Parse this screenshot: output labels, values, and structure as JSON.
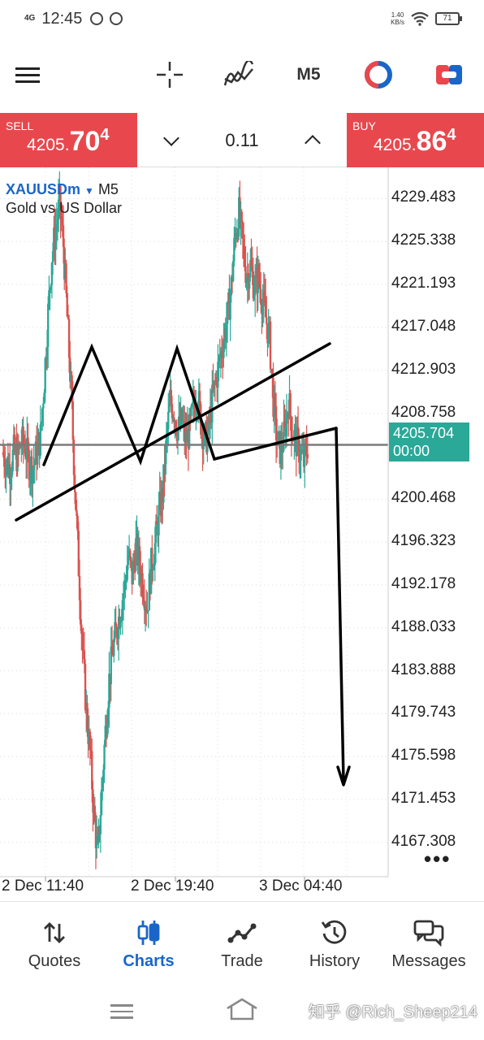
{
  "status": {
    "network": "4G",
    "time": "12:45",
    "speed_value": "1.40",
    "speed_unit": "KB/s",
    "battery": "71"
  },
  "toolbar": {
    "timeframe": "M5",
    "icons": [
      "menu-icon",
      "crosshair-icon",
      "indicators-icon",
      "timeframe-button",
      "chart-color-icon",
      "trade-icon"
    ]
  },
  "trade": {
    "sell_label": "SELL",
    "sell_price_main": "4205.",
    "sell_price_big": "70",
    "sell_price_sup": "4",
    "lot": "0.11",
    "buy_label": "BUY",
    "buy_price_main": "4205.",
    "buy_price_big": "86",
    "buy_price_sup": "4"
  },
  "chart_header": {
    "symbol": "XAUUSDm",
    "timeframe": "M5",
    "description": "Gold vs US Dollar"
  },
  "colors": {
    "sell_bg": "#e8484d",
    "buy_bg": "#e8484d",
    "bull_candle": "#2aa898",
    "bear_candle": "#d9534f",
    "current_price_bg": "#2aa898",
    "accent": "#1a66c8"
  },
  "chart_data": {
    "type": "candlestick",
    "symbol": "XAUUSDm",
    "timeframe": "M5",
    "y_ticks": [
      "4229.483",
      "4225.338",
      "4221.193",
      "4217.048",
      "4212.903",
      "4208.758",
      "4200.468",
      "4196.323",
      "4192.178",
      "4188.033",
      "4183.888",
      "4179.743",
      "4175.598",
      "4171.453",
      "4167.308"
    ],
    "x_ticks": [
      "2 Dec 11:40",
      "2 Dec 19:40",
      "3 Dec 04:40"
    ],
    "ylim": [
      4164.0,
      4232.5
    ],
    "current_price": "4205.704",
    "current_time": "00:00",
    "current_price_value": 4205.704,
    "grid": true,
    "close_path": [
      4205.0,
      4204.0,
      4203.5,
      4205.0,
      4204.5,
      4206.0,
      4205.5,
      4204.0,
      4203.5,
      4205.0,
      4206.5,
      4212.0,
      4218.5,
      4224.0,
      4226.5,
      4229.0,
      4225.0,
      4218.0,
      4211.0,
      4202.0,
      4194.0,
      4186.0,
      4180.0,
      4176.0,
      4170.0,
      4166.0,
      4172.0,
      4178.0,
      4183.0,
      4186.0,
      4188.0,
      4190.0,
      4192.0,
      4195.0,
      4193.0,
      4196.0,
      4194.0,
      4192.0,
      4190.0,
      4194.0,
      4196.0,
      4199.0,
      4201.0,
      4206.0,
      4210.0,
      4209.0,
      4207.0,
      4208.0,
      4206.0,
      4207.0,
      4209.0,
      4211.0,
      4208.0,
      4206.0,
      4207.0,
      4210.0,
      4212.0,
      4214.0,
      4216.0,
      4218.0,
      4221.0,
      4226.0,
      4228.0,
      4225.0,
      4222.0,
      4223.0,
      4221.0,
      4222.0,
      4220.0,
      4218.0,
      4216.0,
      4210.0,
      4206.0,
      4205.0,
      4207.0,
      4210.0,
      4207.0,
      4206.0,
      4205.0,
      4204.0,
      4205.7
    ],
    "annotations": {
      "pattern": "double-top with neckline and projected target",
      "target_price": 4171.453
    }
  },
  "nav": {
    "items": [
      {
        "label": "Quotes"
      },
      {
        "label": "Charts"
      },
      {
        "label": "Trade"
      },
      {
        "label": "History"
      },
      {
        "label": "Messages"
      }
    ],
    "active": "Charts"
  },
  "watermark": "知乎 @Rich_Sheep214"
}
